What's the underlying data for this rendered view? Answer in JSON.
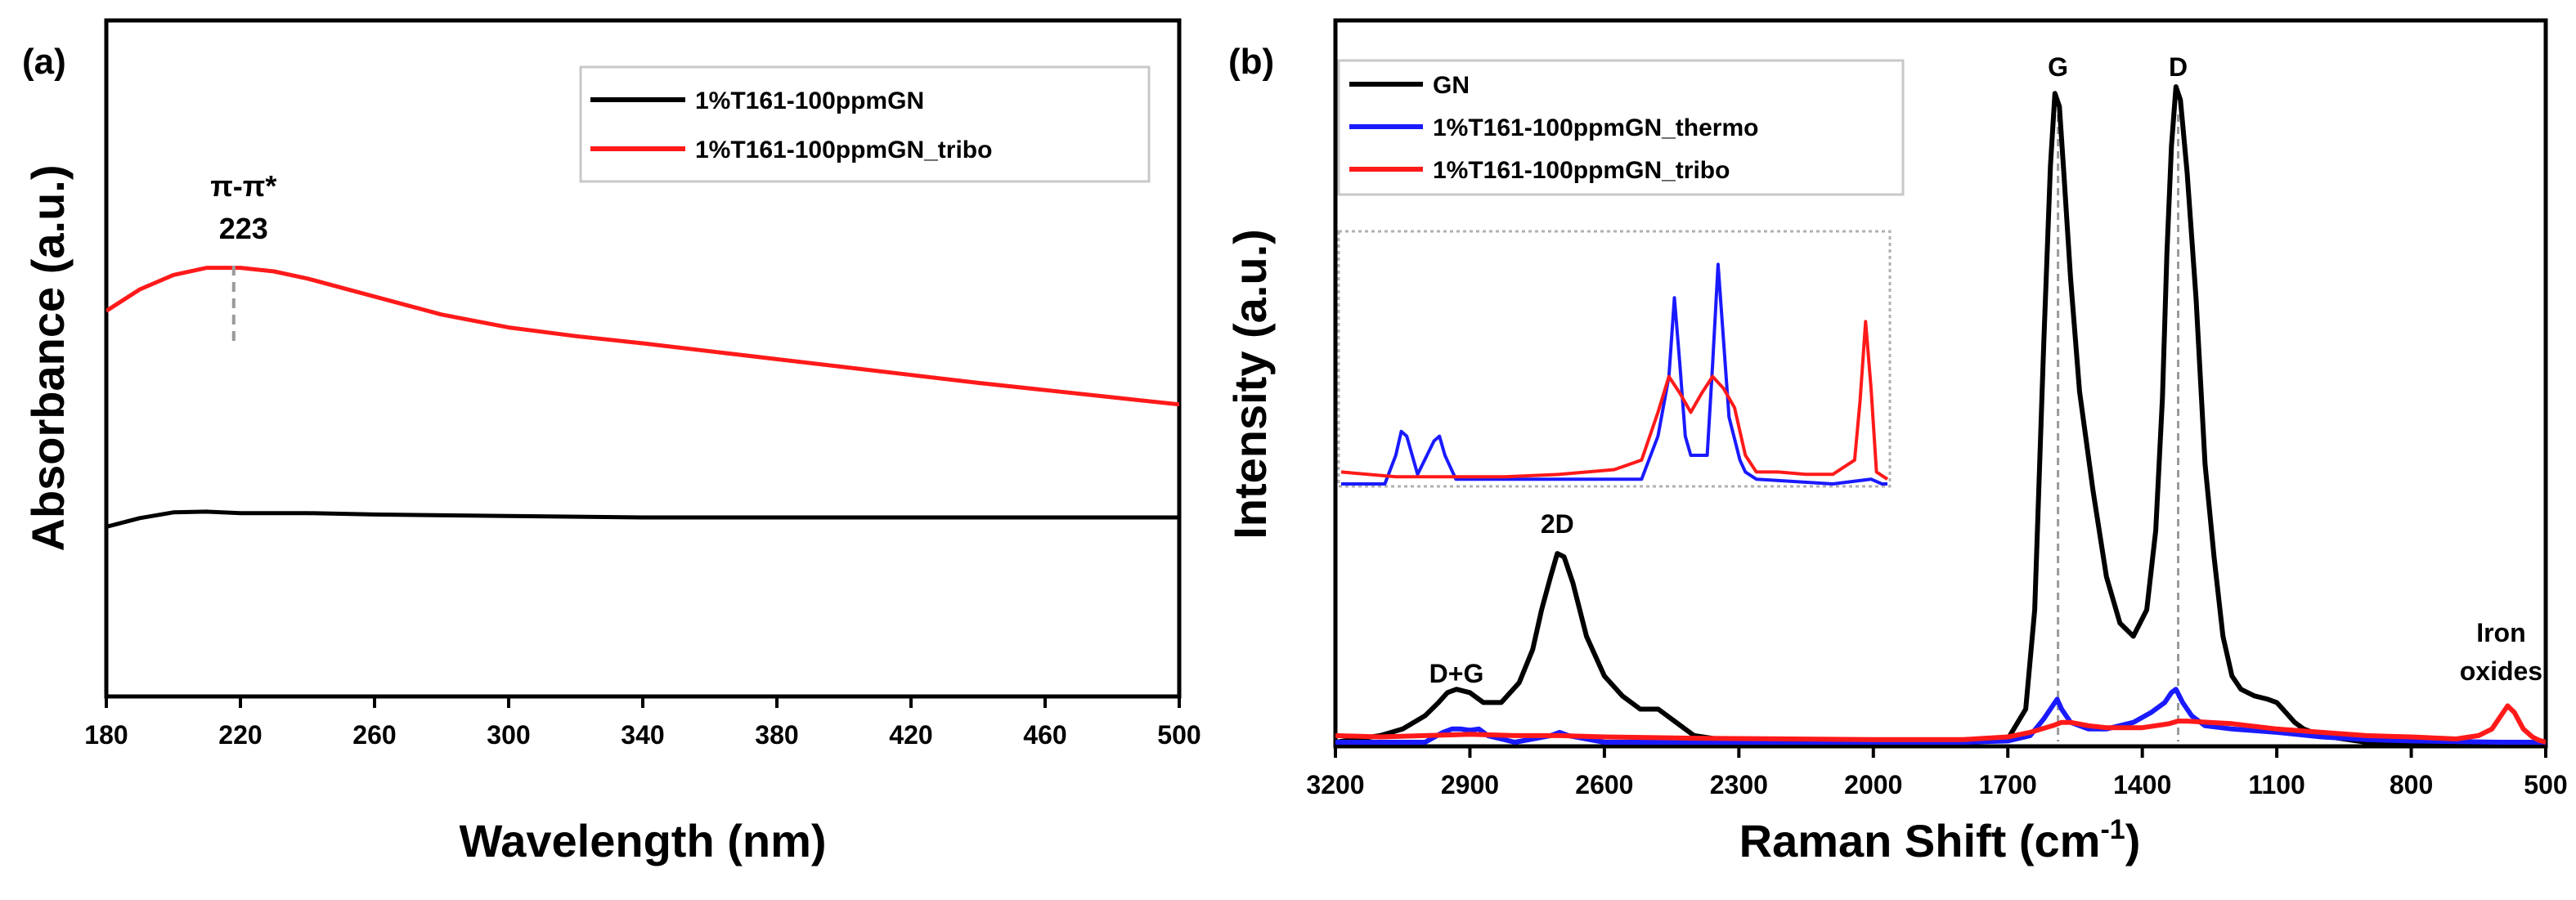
{
  "panel_labels": {
    "a": "(a)",
    "b": "(b)"
  },
  "colors": {
    "black": "#000000",
    "blue": "#1a1aff",
    "red": "#ff1a1a",
    "guide": "#9a9a9a"
  },
  "chart_data": [
    {
      "type": "line",
      "title": "",
      "xlabel": "Wavelength (nm)",
      "ylabel": "Absorbance (a.u.)",
      "xlim": [
        180,
        500
      ],
      "ylim": [
        0,
        1
      ],
      "xticks": [
        180,
        220,
        260,
        300,
        340,
        380,
        420,
        460,
        500
      ],
      "legend_position": "top-right",
      "series": [
        {
          "name": "1%T161-100ppmGN",
          "color": "#000000",
          "x": [
            180,
            190,
            200,
            210,
            220,
            240,
            260,
            300,
            340,
            380,
            420,
            460,
            500
          ],
          "y": [
            0.245,
            0.257,
            0.265,
            0.266,
            0.264,
            0.264,
            0.262,
            0.26,
            0.258,
            0.258,
            0.258,
            0.258,
            0.258
          ]
        },
        {
          "name": "1%T161-100ppmGN_tribo",
          "color": "#ff1a1a",
          "x": [
            180,
            190,
            200,
            210,
            220,
            230,
            240,
            260,
            280,
            300,
            320,
            340,
            360,
            380,
            400,
            420,
            440,
            460,
            480,
            500
          ],
          "y": [
            0.545,
            0.575,
            0.595,
            0.605,
            0.605,
            0.6,
            0.59,
            0.565,
            0.54,
            0.522,
            0.51,
            0.5,
            0.489,
            0.478,
            0.467,
            0.456,
            0.445,
            0.435,
            0.425,
            0.415
          ]
        }
      ],
      "annotations": [
        {
          "text_line1": "π-π*",
          "text_line2": "223",
          "x": 218
        }
      ]
    },
    {
      "type": "line",
      "title": "",
      "xlabel_main": "Raman Shift (cm",
      "xlabel_sup": "-1",
      "xlabel_end": ")",
      "ylabel": "Intensity (a.u.)",
      "xlim": [
        3200,
        500
      ],
      "ylim": [
        0,
        1
      ],
      "xticks": [
        3200,
        2900,
        2600,
        2300,
        2000,
        1700,
        1400,
        1100,
        800,
        500
      ],
      "legend_position": "top-left",
      "series": [
        {
          "name": "GN",
          "color": "#000000",
          "x": [
            3200,
            3100,
            3050,
            3000,
            2970,
            2950,
            2930,
            2900,
            2870,
            2830,
            2790,
            2760,
            2740,
            2720,
            2705,
            2690,
            2670,
            2640,
            2600,
            2560,
            2520,
            2480,
            2440,
            2400,
            2350,
            2300,
            2200,
            2100,
            2000,
            1900,
            1800,
            1700,
            1660,
            1640,
            1620,
            1605,
            1595,
            1585,
            1575,
            1560,
            1540,
            1510,
            1480,
            1450,
            1420,
            1390,
            1370,
            1355,
            1345,
            1335,
            1325,
            1315,
            1300,
            1280,
            1260,
            1240,
            1220,
            1200,
            1180,
            1150,
            1120,
            1100,
            1080,
            1060,
            1040,
            1000,
            950,
            900,
            800,
            700,
            600,
            500
          ],
          "y": [
            0.0,
            0.01,
            0.02,
            0.04,
            0.06,
            0.075,
            0.08,
            0.075,
            0.06,
            0.06,
            0.09,
            0.14,
            0.2,
            0.25,
            0.285,
            0.28,
            0.24,
            0.16,
            0.1,
            0.07,
            0.05,
            0.05,
            0.03,
            0.01,
            0.005,
            0.0,
            0.0,
            0.0,
            0.0,
            0.0,
            0.0,
            0.005,
            0.05,
            0.2,
            0.6,
            0.87,
            0.98,
            0.96,
            0.86,
            0.7,
            0.53,
            0.38,
            0.25,
            0.18,
            0.16,
            0.2,
            0.32,
            0.52,
            0.74,
            0.9,
            0.99,
            0.97,
            0.86,
            0.67,
            0.42,
            0.28,
            0.16,
            0.1,
            0.08,
            0.07,
            0.065,
            0.06,
            0.045,
            0.03,
            0.02,
            0.01,
            0.005,
            0.0,
            0.0,
            0.0,
            0.0,
            0.0
          ]
        },
        {
          "name": "1%T161-100ppmGN_thermo",
          "color": "#1a1aff",
          "x": [
            3200,
            3000,
            2960,
            2940,
            2920,
            2900,
            2880,
            2860,
            2800,
            2760,
            2720,
            2700,
            2680,
            2640,
            2600,
            2400,
            2000,
            1800,
            1700,
            1650,
            1620,
            1600,
            1590,
            1580,
            1560,
            1520,
            1480,
            1420,
            1380,
            1350,
            1335,
            1325,
            1310,
            1290,
            1260,
            1200,
            1100,
            1000,
            900,
            800,
            600,
            500
          ],
          "y": [
            0.0,
            0.0,
            0.015,
            0.02,
            0.02,
            0.018,
            0.02,
            0.01,
            0.0,
            0.005,
            0.01,
            0.015,
            0.01,
            0.005,
            0.0,
            0.0,
            0.0,
            0.0,
            0.002,
            0.01,
            0.035,
            0.055,
            0.065,
            0.05,
            0.03,
            0.02,
            0.02,
            0.03,
            0.045,
            0.06,
            0.075,
            0.08,
            0.06,
            0.04,
            0.025,
            0.02,
            0.015,
            0.008,
            0.004,
            0.002,
            0.0,
            0.0
          ]
        },
        {
          "name": "1%T161-100ppmGN_tribo",
          "color": "#ff1a1a",
          "x": [
            3200,
            3100,
            3000,
            2900,
            2800,
            2700,
            2600,
            2400,
            2000,
            1800,
            1700,
            1650,
            1600,
            1580,
            1560,
            1520,
            1480,
            1400,
            1340,
            1320,
            1300,
            1250,
            1200,
            1100,
            1000,
            900,
            800,
            700,
            650,
            620,
            600,
            585,
            570,
            550,
            530,
            515,
            500
          ],
          "y": [
            0.01,
            0.008,
            0.01,
            0.012,
            0.01,
            0.01,
            0.008,
            0.006,
            0.004,
            0.004,
            0.008,
            0.015,
            0.025,
            0.03,
            0.03,
            0.025,
            0.022,
            0.022,
            0.028,
            0.032,
            0.032,
            0.03,
            0.028,
            0.02,
            0.015,
            0.01,
            0.008,
            0.005,
            0.01,
            0.02,
            0.04,
            0.055,
            0.045,
            0.02,
            0.008,
            0.003,
            0.0
          ]
        }
      ],
      "annotations": [
        {
          "text": "G",
          "x": 1588
        },
        {
          "text": "D",
          "x": 1320
        },
        {
          "text": "2D",
          "x": 2705
        },
        {
          "text": "D+G",
          "x": 2930
        },
        {
          "text_line1": "Iron",
          "text_line2": "oxides",
          "x": 585
        }
      ],
      "inset": {
        "description": "zoomed GN-region comparison of thermo and tribo spectra",
        "xlim": [
          0,
          1
        ],
        "ylim": [
          0,
          1
        ],
        "series": [
          {
            "name": "1%T161-100ppmGN_thermo",
            "color": "#1a1aff",
            "x": [
              0.0,
              0.08,
              0.1,
              0.11,
              0.12,
              0.14,
              0.17,
              0.18,
              0.19,
              0.21,
              0.3,
              0.55,
              0.58,
              0.6,
              0.61,
              0.62,
              0.63,
              0.64,
              0.67,
              0.68,
              0.69,
              0.7,
              0.71,
              0.73,
              0.74,
              0.76,
              0.9,
              0.97,
              0.99,
              1.0
            ],
            "y": [
              0.0,
              0.0,
              0.12,
              0.22,
              0.2,
              0.04,
              0.18,
              0.2,
              0.12,
              0.02,
              0.02,
              0.02,
              0.2,
              0.45,
              0.78,
              0.5,
              0.2,
              0.12,
              0.12,
              0.5,
              0.92,
              0.6,
              0.28,
              0.1,
              0.05,
              0.02,
              0.0,
              0.02,
              0.0,
              0.0
            ]
          },
          {
            "name": "1%T161-100ppmGN_tribo",
            "color": "#ff1a1a",
            "x": [
              0.0,
              0.1,
              0.2,
              0.3,
              0.4,
              0.5,
              0.55,
              0.58,
              0.6,
              0.62,
              0.64,
              0.66,
              0.68,
              0.7,
              0.72,
              0.74,
              0.76,
              0.8,
              0.85,
              0.9,
              0.94,
              0.95,
              0.96,
              0.97,
              0.98,
              1.0
            ],
            "y": [
              0.05,
              0.03,
              0.03,
              0.03,
              0.04,
              0.06,
              0.1,
              0.3,
              0.45,
              0.38,
              0.3,
              0.38,
              0.45,
              0.4,
              0.32,
              0.12,
              0.05,
              0.05,
              0.04,
              0.04,
              0.1,
              0.35,
              0.68,
              0.4,
              0.05,
              0.02
            ]
          }
        ]
      }
    }
  ]
}
